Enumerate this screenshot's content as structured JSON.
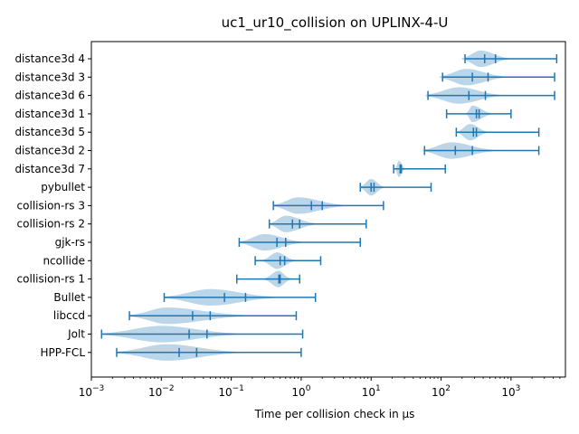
{
  "chart_data": {
    "type": "violin",
    "title": "uc1_ur10_collision on UPLINX-4-U",
    "xlabel": "Time per collision check in μs",
    "ylabel": "",
    "xscale": "log",
    "xlim": [
      0.001,
      6000
    ],
    "xticks": [
      {
        "value": 0.001,
        "base": "10",
        "exp": "−3"
      },
      {
        "value": 0.01,
        "base": "10",
        "exp": "−2"
      },
      {
        "value": 0.1,
        "base": "10",
        "exp": "−1"
      },
      {
        "value": 1,
        "base": "10",
        "exp": "0"
      },
      {
        "value": 10,
        "base": "10",
        "exp": "1"
      },
      {
        "value": 100,
        "base": "10",
        "exp": "2"
      },
      {
        "value": 1000,
        "base": "10",
        "exp": "3"
      }
    ],
    "grid": false,
    "color": "#1f77b4",
    "fill_color": "#1f77b4",
    "series": [
      {
        "label": "distance3d 4",
        "min": 220,
        "median": 420,
        "mean": 600,
        "max": 4500,
        "spread_lo": 200,
        "spread_hi": 900,
        "peak": 370,
        "width": 0.45
      },
      {
        "label": "distance3d 3",
        "min": 105,
        "median": 280,
        "mean": 470,
        "max": 4200,
        "spread_lo": 95,
        "spread_hi": 800,
        "peak": 230,
        "width": 0.45
      },
      {
        "label": "distance3d 6",
        "min": 65,
        "median": 250,
        "mean": 430,
        "max": 4200,
        "spread_lo": 60,
        "spread_hi": 700,
        "peak": 180,
        "width": 0.45
      },
      {
        "label": "distance3d 1",
        "min": 120,
        "median": 320,
        "mean": 350,
        "max": 1000,
        "spread_lo": 230,
        "spread_hi": 520,
        "peak": 280,
        "width": 0.45
      },
      {
        "label": "distance3d 5",
        "min": 165,
        "median": 290,
        "mean": 320,
        "max": 2500,
        "spread_lo": 170,
        "spread_hi": 450,
        "peak": 260,
        "width": 0.45
      },
      {
        "label": "distance3d 2",
        "min": 58,
        "median": 160,
        "mean": 280,
        "max": 2500,
        "spread_lo": 55,
        "spread_hi": 550,
        "peak": 140,
        "width": 0.45
      },
      {
        "label": "distance3d 7",
        "min": 21,
        "median": 26,
        "mean": 27,
        "max": 115,
        "spread_lo": 22,
        "spread_hi": 30,
        "peak": 25,
        "width": 0.45
      },
      {
        "label": "pybullet",
        "min": 7,
        "median": 10,
        "mean": 11,
        "max": 72,
        "spread_lo": 7,
        "spread_hi": 15,
        "peak": 10,
        "width": 0.45
      },
      {
        "label": "collision-rs 3",
        "min": 0.4,
        "median": 1.4,
        "mean": 2.0,
        "max": 15,
        "spread_lo": 0.4,
        "spread_hi": 4,
        "peak": 0.9,
        "width": 0.45
      },
      {
        "label": "collision-rs 2",
        "min": 0.35,
        "median": 0.75,
        "mean": 0.95,
        "max": 8.5,
        "spread_lo": 0.35,
        "spread_hi": 1.6,
        "peak": 0.6,
        "width": 0.45
      },
      {
        "label": "gjk-rs",
        "min": 0.13,
        "median": 0.45,
        "mean": 0.6,
        "max": 7,
        "spread_lo": 0.13,
        "spread_hi": 1.0,
        "peak": 0.3,
        "width": 0.45
      },
      {
        "label": "ncollide",
        "min": 0.22,
        "median": 0.5,
        "mean": 0.58,
        "max": 1.9,
        "spread_lo": 0.28,
        "spread_hi": 0.8,
        "peak": 0.45,
        "width": 0.45
      },
      {
        "label": "collision-rs 1",
        "min": 0.12,
        "median": 0.48,
        "mean": 0.5,
        "max": 0.95,
        "spread_lo": 0.3,
        "spread_hi": 0.7,
        "peak": 0.47,
        "width": 0.45
      },
      {
        "label": "Bullet",
        "min": 0.011,
        "median": 0.08,
        "mean": 0.16,
        "max": 1.6,
        "spread_lo": 0.011,
        "spread_hi": 0.4,
        "peak": 0.05,
        "width": 0.45
      },
      {
        "label": "libccd",
        "min": 0.0035,
        "median": 0.028,
        "mean": 0.05,
        "max": 0.85,
        "spread_lo": 0.0035,
        "spread_hi": 0.15,
        "peak": 0.012,
        "width": 0.45
      },
      {
        "label": "Jolt",
        "min": 0.0014,
        "median": 0.025,
        "mean": 0.045,
        "max": 1.05,
        "spread_lo": 0.0014,
        "spread_hi": 0.12,
        "peak": 0.01,
        "width": 0.45
      },
      {
        "label": "HPP-FCL",
        "min": 0.0023,
        "median": 0.018,
        "mean": 0.032,
        "max": 1.0,
        "spread_lo": 0.0023,
        "spread_hi": 0.12,
        "peak": 0.012,
        "width": 0.45
      }
    ]
  }
}
